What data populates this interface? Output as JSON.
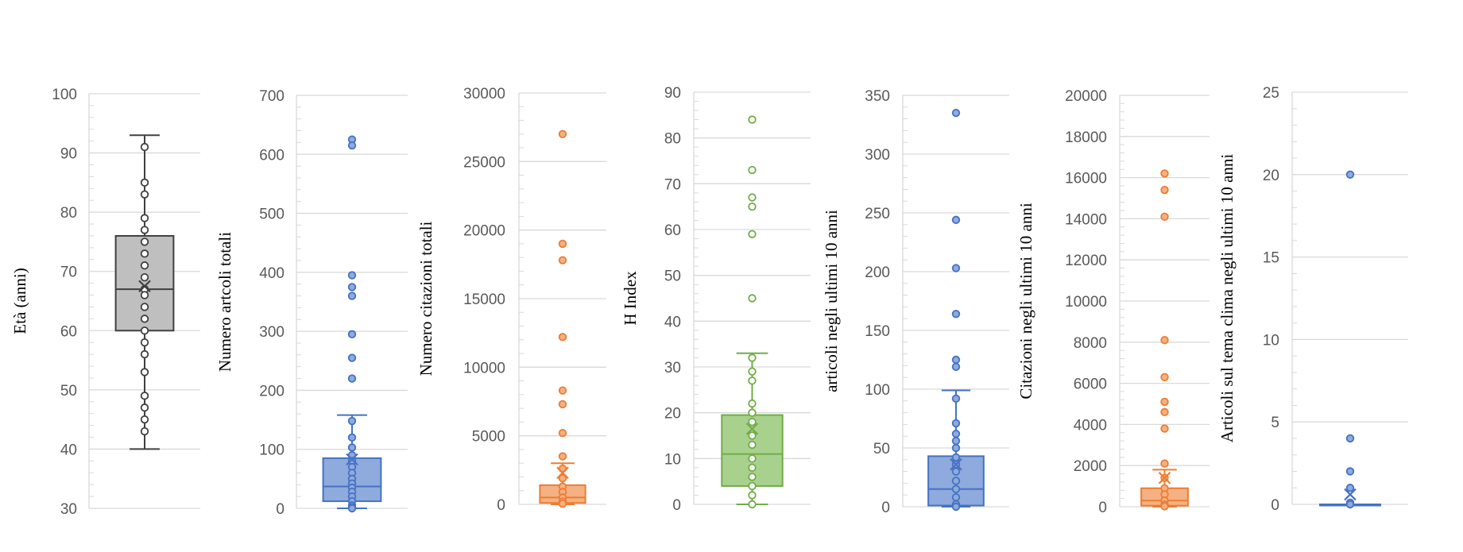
{
  "chart_data": [
    {
      "type": "box",
      "ylabel": "Età (anni)",
      "ylim": [
        30,
        100
      ],
      "yticks": [
        30,
        40,
        50,
        60,
        70,
        80,
        90,
        100
      ],
      "color": "#bfbfbf",
      "edge": "#404040",
      "box": {
        "min": 40,
        "q1": 60,
        "median": 67,
        "q3": 76,
        "max": 93,
        "mean": 67.5
      },
      "points": [
        91,
        85,
        83,
        79,
        77,
        75,
        73,
        71,
        69,
        67,
        66,
        64,
        62,
        60,
        58,
        56,
        53,
        49,
        47,
        45,
        43
      ],
      "hollow_points": true,
      "grid": true
    },
    {
      "type": "box",
      "ylabel": "Numero artcoli totali",
      "ylim": [
        0,
        700
      ],
      "yticks": [
        0,
        100,
        200,
        300,
        400,
        500,
        600,
        700
      ],
      "color": "#8faadc",
      "edge": "#4472c4",
      "box": {
        "min": 0,
        "q1": 12,
        "median": 37,
        "q3": 85,
        "max": 158,
        "mean": 83
      },
      "points": [
        625,
        615,
        395,
        375,
        360,
        295,
        255,
        220,
        148,
        120,
        103,
        90,
        80,
        70,
        60,
        50,
        42,
        35,
        28,
        20,
        12,
        5,
        2,
        0
      ],
      "hollow_points": false,
      "grid": true
    },
    {
      "type": "box",
      "ylabel": "Numero citazioni totali",
      "ylim": [
        0,
        30000
      ],
      "yticks": [
        0,
        5000,
        10000,
        15000,
        20000,
        25000,
        30000
      ],
      "color": "#f4b183",
      "edge": "#ed7d31",
      "box": {
        "min": 0,
        "q1": 100,
        "median": 500,
        "q3": 1400,
        "max": 3000,
        "mean": 2300
      },
      "points": [
        27000,
        19000,
        17800,
        12200,
        8300,
        7300,
        5200,
        3500,
        2600,
        1900,
        1300,
        900,
        500,
        200,
        50
      ],
      "hollow_points": false,
      "grid": true
    },
    {
      "type": "box",
      "ylabel": "H Index",
      "ylim": [
        0,
        90
      ],
      "yticks": [
        0,
        10,
        20,
        30,
        40,
        50,
        60,
        70,
        80,
        90
      ],
      "color": "#a9d18e",
      "edge": "#70ad47",
      "box": {
        "min": 0,
        "q1": 4,
        "median": 11,
        "q3": 19.5,
        "max": 33,
        "mean": 16.5
      },
      "points": [
        84,
        73,
        67,
        65,
        59,
        45,
        32,
        29,
        27,
        22,
        20,
        18,
        15,
        13,
        10,
        8,
        6,
        4,
        2,
        0
      ],
      "hollow_points": true,
      "grid": true
    },
    {
      "type": "box",
      "ylabel": "articoli negli ultimi 10 anni",
      "ylim": [
        0,
        350
      ],
      "yticks": [
        0,
        50,
        100,
        150,
        200,
        250,
        300,
        350
      ],
      "color": "#8faadc",
      "edge": "#4472c4",
      "box": {
        "min": 0,
        "q1": 1,
        "median": 15,
        "q3": 43,
        "max": 99,
        "mean": 36
      },
      "points": [
        335,
        244,
        203,
        164,
        125,
        119,
        92,
        71,
        62,
        56,
        50,
        42,
        36,
        30,
        22,
        15,
        8,
        2,
        0
      ],
      "hollow_points": false,
      "grid": true
    },
    {
      "type": "box",
      "ylabel": "Citazioni negli ultimi 10 anni",
      "ylim": [
        0,
        20000
      ],
      "yticks": [
        0,
        2000,
        4000,
        6000,
        8000,
        10000,
        12000,
        14000,
        16000,
        18000,
        20000
      ],
      "color": "#f4b183",
      "edge": "#ed7d31",
      "box": {
        "min": 0,
        "q1": 50,
        "median": 300,
        "q3": 900,
        "max": 1800,
        "mean": 1400
      },
      "points": [
        16200,
        15400,
        14100,
        8100,
        6300,
        5100,
        4600,
        3800,
        2100,
        1400,
        900,
        600,
        300,
        100,
        20
      ],
      "hollow_points": false,
      "grid": true
    },
    {
      "type": "box",
      "ylabel": "Articoli sul tema clima negli ultimi 10 anni",
      "ylim": [
        0,
        25
      ],
      "yticks": [
        0,
        5,
        10,
        15,
        20,
        25
      ],
      "color": "#8faadc",
      "edge": "#4472c4",
      "box": {
        "min": 0,
        "q1": 0,
        "median": 0,
        "q3": 0,
        "max": 0,
        "mean": 0.6
      },
      "points": [
        20,
        4,
        2,
        1,
        0.1,
        0
      ],
      "hollow_points": false,
      "grid": true
    }
  ]
}
